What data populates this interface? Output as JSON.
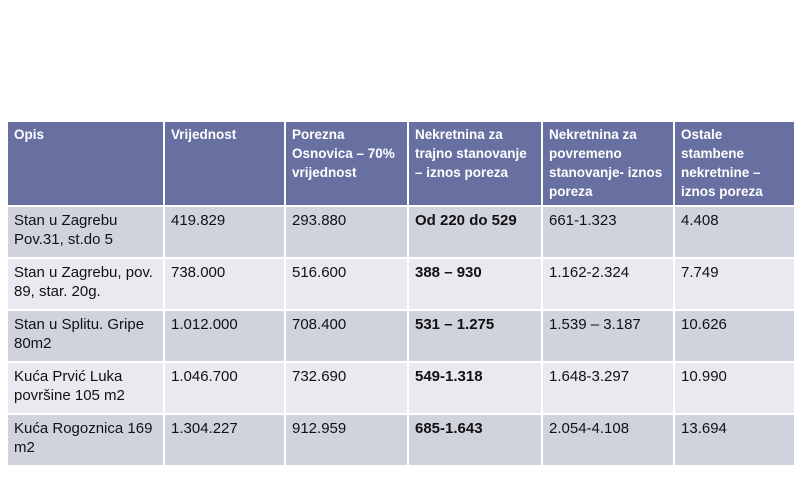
{
  "table": {
    "headers": [
      "Opis",
      "Vrijednost",
      "Porezna Osnovica – 70% vrijednost",
      "Nekretnina za trajno stanovanje – iznos poreza",
      "Nekretnina za povremeno stanovanje- iznos poreza",
      "Ostale stambene nekretnine – iznos poreza"
    ],
    "rows": [
      [
        "Stan u Zagrebu Pov.31, st.do 5",
        "419.829",
        "293.880",
        "Od 220 do 529",
        "661-1.323",
        "4.408"
      ],
      [
        "Stan u Zagrebu, pov. 89, star. 20g.",
        "738.000",
        "516.600",
        "388 – 930",
        "1.162-2.324",
        "7.749"
      ],
      [
        "Stan u Splitu. Gripe  80m2",
        "1.012.000",
        "708.400",
        "531 – 1.275",
        "1.539 – 3.187",
        "10.626"
      ],
      [
        "Kuća Prvić Luka površine 105 m2",
        "1.046.700",
        "732.690",
        "549-1.318",
        "1.648-3.297",
        "10.990"
      ],
      [
        "Kuća Rogoznica 169 m2",
        "1.304.227",
        "912.959",
        "685-1.643",
        "2.054-4.108",
        "13.694"
      ]
    ]
  },
  "colors": {
    "header_bg": "#6770a1",
    "row_dark": "#d0d3de",
    "row_light": "#e9eaf0"
  }
}
